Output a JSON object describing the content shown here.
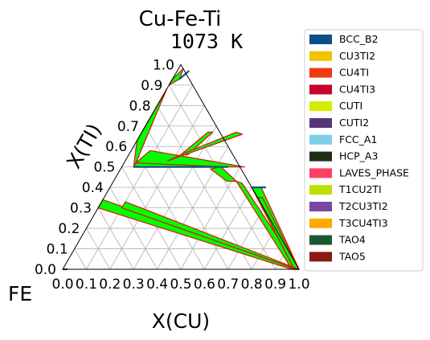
{
  "chart_data": {
    "type": "ternary",
    "title": "Cu-Fe-Ti",
    "subtitle": "1073 K",
    "xlabel": "X(CU)",
    "ylabel": "X(TI)",
    "corner_label": "FE",
    "ticks": [
      "0.0",
      "0.1",
      "0.2",
      "0.3",
      "0.4",
      "0.5",
      "0.6",
      "0.7",
      "0.8",
      "0.9",
      "1.0"
    ],
    "legend_position": "right",
    "legend": [
      {
        "name": "BCC_B2",
        "color": "#0a4f8a"
      },
      {
        "name": "CU3TI2",
        "color": "#f2c200"
      },
      {
        "name": "CU4TI",
        "color": "#ee3b12"
      },
      {
        "name": "CU4TI3",
        "color": "#c8002a"
      },
      {
        "name": "CUTI",
        "color": "#d4ec00"
      },
      {
        "name": "CUTI2",
        "color": "#56367a"
      },
      {
        "name": "FCC_A1",
        "color": "#7ecfea"
      },
      {
        "name": "HCP_A3",
        "color": "#1f2e16"
      },
      {
        "name": "LAVES_PHASE",
        "color": "#ff3e62"
      },
      {
        "name": "T1CU2TI",
        "color": "#bde000"
      },
      {
        "name": "T2CU3TI2",
        "color": "#7a44a4"
      },
      {
        "name": "T3CU4TI3",
        "color": "#ffaa00"
      },
      {
        "name": "TAO4",
        "color": "#1a5a32"
      },
      {
        "name": "TAO5",
        "color": "#8a1a12"
      }
    ],
    "two_phase_regions_xcu_xti": [
      [
        [
          0.0,
          0.3
        ],
        [
          0.0,
          0.34
        ],
        [
          1.0,
          0.0
        ],
        [
          0.97,
          0.0
        ]
      ],
      [
        [
          0.05,
          0.5
        ],
        [
          0.05,
          0.53
        ],
        [
          0.4,
          0.51
        ],
        [
          0.38,
          0.5
        ]
      ],
      [
        [
          0.05,
          0.52
        ],
        [
          0.08,
          0.58
        ],
        [
          0.52,
          0.5
        ],
        [
          0.44,
          0.5
        ]
      ],
      [
        [
          0.0,
          0.63
        ],
        [
          0.0,
          0.88
        ],
        [
          0.05,
          0.52
        ],
        [
          0.05,
          0.5
        ]
      ],
      [
        [
          0.0,
          0.9
        ],
        [
          0.0,
          0.93
        ],
        [
          0.02,
          0.98
        ],
        [
          0.03,
          0.93
        ]
      ],
      [
        [
          0.28,
          0.67
        ],
        [
          0.3,
          0.67
        ],
        [
          0.25,
          0.56
        ],
        [
          0.22,
          0.56
        ]
      ],
      [
        [
          0.18,
          0.53
        ],
        [
          0.22,
          0.56
        ],
        [
          0.4,
          0.67
        ],
        [
          0.43,
          0.66
        ]
      ],
      [
        [
          0.38,
          0.49
        ],
        [
          0.42,
          0.5
        ],
        [
          0.52,
          0.43
        ],
        [
          0.48,
          0.43
        ]
      ],
      [
        [
          0.52,
          0.43
        ],
        [
          0.55,
          0.42
        ],
        [
          1.0,
          0.0
        ],
        [
          0.97,
          0.0
        ]
      ],
      [
        [
          0.6,
          0.4
        ],
        [
          0.64,
          0.4
        ],
        [
          1.0,
          0.0
        ],
        [
          0.98,
          0.0
        ]
      ],
      [
        [
          0.65,
          0.35
        ],
        [
          0.67,
          0.35
        ],
        [
          1.0,
          0.0
        ],
        [
          0.98,
          0.0
        ]
      ],
      [
        [
          0.1,
          0.3
        ],
        [
          0.1,
          0.33
        ],
        [
          1.0,
          0.0
        ],
        [
          0.99,
          0.0
        ]
      ]
    ],
    "boundary_lines_xcu_xti": [
      [
        [
          0.05,
          0.5
        ],
        [
          0.45,
          0.5
        ]
      ],
      [
        [
          0.03,
          0.93
        ],
        [
          0.05,
          0.97
        ]
      ],
      [
        [
          0.6,
          0.4
        ],
        [
          0.66,
          0.4
        ]
      ],
      [
        [
          0.0,
          0.0
        ],
        [
          0.02,
          0.0
        ]
      ]
    ]
  }
}
